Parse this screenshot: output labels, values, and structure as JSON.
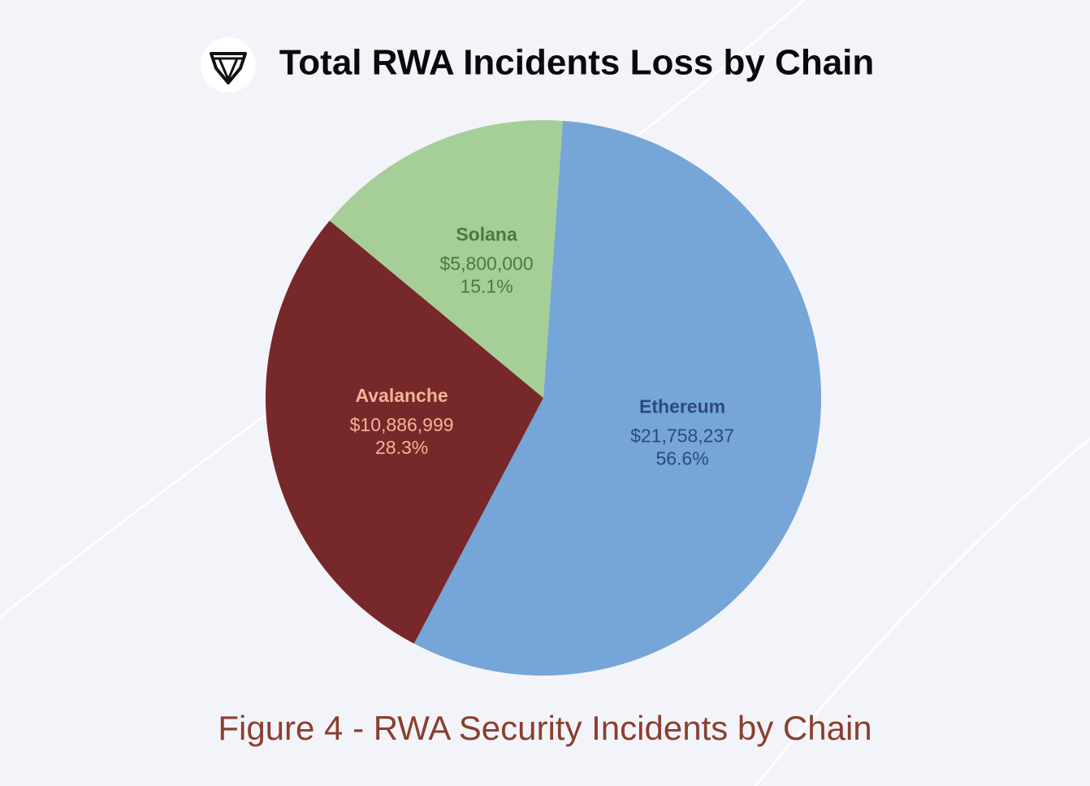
{
  "chart_data": {
    "type": "pie",
    "title": "Total RWA Incidents Loss by Chain",
    "caption": "Figure 4 - RWA Security Incidents by Chain",
    "categories": [
      "Ethereum",
      "Avalanche",
      "Solana"
    ],
    "values": [
      21758237,
      10886999,
      5800000
    ],
    "value_labels": [
      "$21,758,237",
      "$10,886,999",
      "$5,800,000"
    ],
    "percent_labels": [
      "56.6%",
      "28.3%",
      "15.1%"
    ],
    "colors": [
      "#76a5d7",
      "#77282a",
      "#a6cf98"
    ],
    "label_colors": [
      "#2b4a80",
      "#f2b496",
      "#4b7a40"
    ]
  }
}
